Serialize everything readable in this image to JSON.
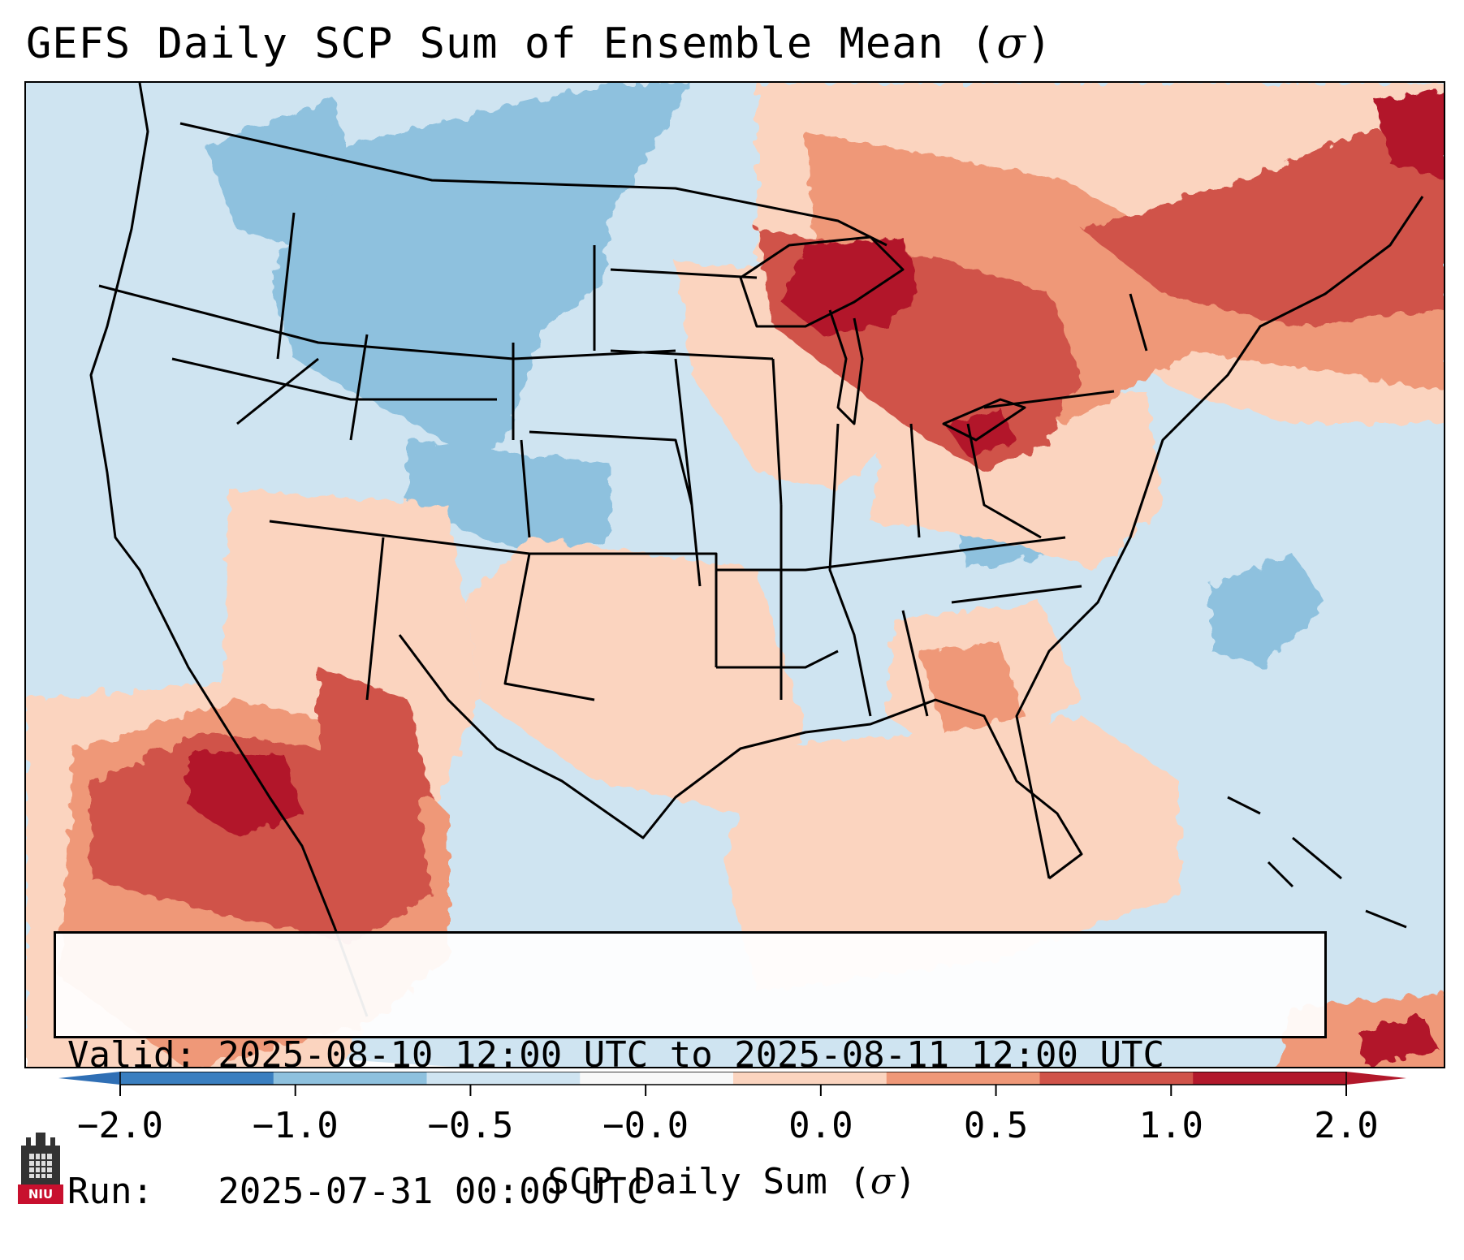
{
  "title": {
    "text": "GEFS Daily SCP Sum of Ensemble Mean (",
    "sigma": "σ",
    "close": ")"
  },
  "info": {
    "valid_line": "Valid: 2025-08-10 12:00 UTC to 2025-08-11 12:00 UTC",
    "run_line": "Run:   2025-07-31 00:00 UTC"
  },
  "colorbar": {
    "label_text": "SCP Daily Sum (",
    "label_sigma": "σ",
    "label_close": ")",
    "ticks": [
      "−2.0",
      "−1.0",
      "−0.5",
      "−0.0",
      "0.0",
      "0.5",
      "1.0",
      "2.0"
    ],
    "colors": [
      "#3a7fc0",
      "#8ec1de",
      "#cfe4f1",
      "#f8f8f8",
      "#fbd4bf",
      "#ef9878",
      "#d05349",
      "#b2182b"
    ],
    "extend_low_color": "#2f6fb5",
    "extend_high_color": "#b2182b"
  },
  "map_fields": {
    "background_color": "#cfe4f1",
    "regions": [
      {
        "name": "northern-rockies-negative",
        "level": "−1.0 to −0.5",
        "color": "#8ec1de"
      },
      {
        "name": "great-lakes-positive",
        "level": "1.0 to 2.0",
        "color": "#b2182b"
      },
      {
        "name": "new-england-positive",
        "level": "0.5 to 1.0",
        "color": "#d05349"
      },
      {
        "name": "southwest-positive",
        "level": "0.5 to 1.0",
        "color": "#d05349"
      },
      {
        "name": "gulf-light-positive",
        "level": "0.0 to 0.5",
        "color": "#fbd4bf"
      }
    ]
  },
  "logo": {
    "text": "NIU",
    "color": "#c8102e"
  }
}
